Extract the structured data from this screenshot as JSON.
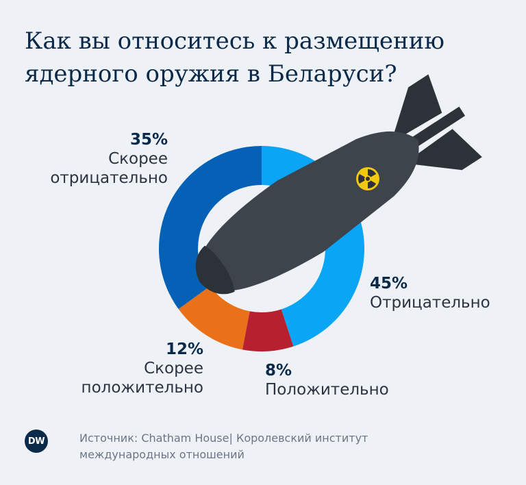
{
  "title_lines": [
    "Как вы относитесь к размещению",
    "ядерного оружия в Беларуси?"
  ],
  "source": "Источник: Chatham House| Королевский институт международных отношений",
  "logo": "DW",
  "colors": {
    "background": "#eef2f6",
    "title": "#0b2a4a",
    "bomb": "#3d444c",
    "bomb_dark": "#2c3238",
    "radiation": "#f2c811"
  },
  "chart_data": {
    "type": "pie",
    "donut": true,
    "categories": [
      "Отрицательно",
      "Положительно",
      "Скорее положительно",
      "Скорее отрицательно"
    ],
    "values": [
      45,
      8,
      12,
      35
    ],
    "labels": [
      "45%",
      "8%",
      "12%",
      "35%"
    ],
    "colors": [
      "#0ba5f5",
      "#b7202e",
      "#e8711a",
      "#0561b5"
    ],
    "start": "top, clockwise"
  }
}
